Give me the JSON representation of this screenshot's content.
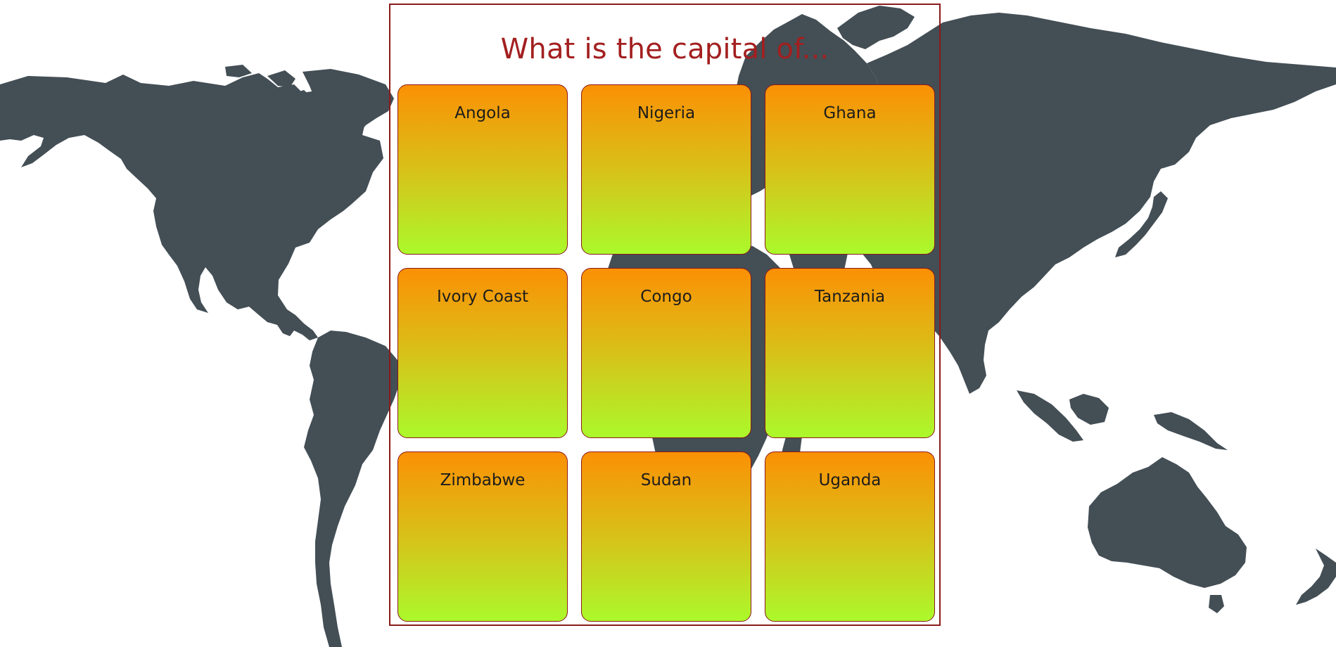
{
  "quiz": {
    "title": "What is the capital of..."
  },
  "cards": [
    {
      "country": "Angola"
    },
    {
      "country": "Nigeria"
    },
    {
      "country": "Ghana"
    },
    {
      "country": "Ivory Coast"
    },
    {
      "country": "Congo"
    },
    {
      "country": "Tanzania"
    },
    {
      "country": "Zimbabwe"
    },
    {
      "country": "Sudan"
    },
    {
      "country": "Uganda"
    }
  ],
  "colors": {
    "background": "#ffffff",
    "map_land": "#434e55",
    "panel_border": "#8b1a1a",
    "title_text": "#a31f1f",
    "card_gradient_top": "#fb9005",
    "card_gradient_bottom": "#abf92b"
  }
}
